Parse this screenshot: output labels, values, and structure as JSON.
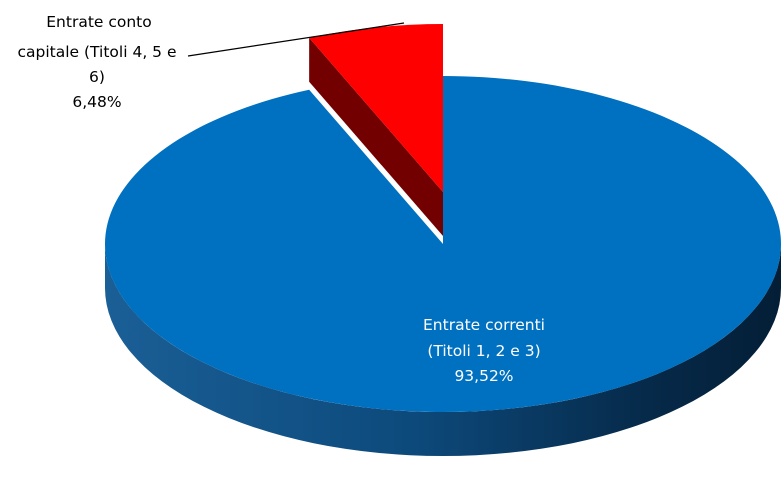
{
  "chart_data": {
    "type": "pie",
    "title": "",
    "slices": [
      {
        "name": "Entrate correnti (Titoli 1, 2 e 3)",
        "label_lines": [
          "Entrate correnti",
          "(Titoli 1, 2 e 3)"
        ],
        "value_label": "93,52%",
        "value": 93.52,
        "color": "#0070C0",
        "exploded": false
      },
      {
        "name": "Entrate conto capitale (Titoli 4, 5 e 6)",
        "label_lines": [
          "Entrate conto",
          "capitale (Titoli 4, 5 e",
          "6)"
        ],
        "value_label": "6,48%",
        "value": 6.48,
        "color": "#FF0000",
        "exploded": true
      }
    ],
    "style": "3d",
    "legend": "none"
  }
}
